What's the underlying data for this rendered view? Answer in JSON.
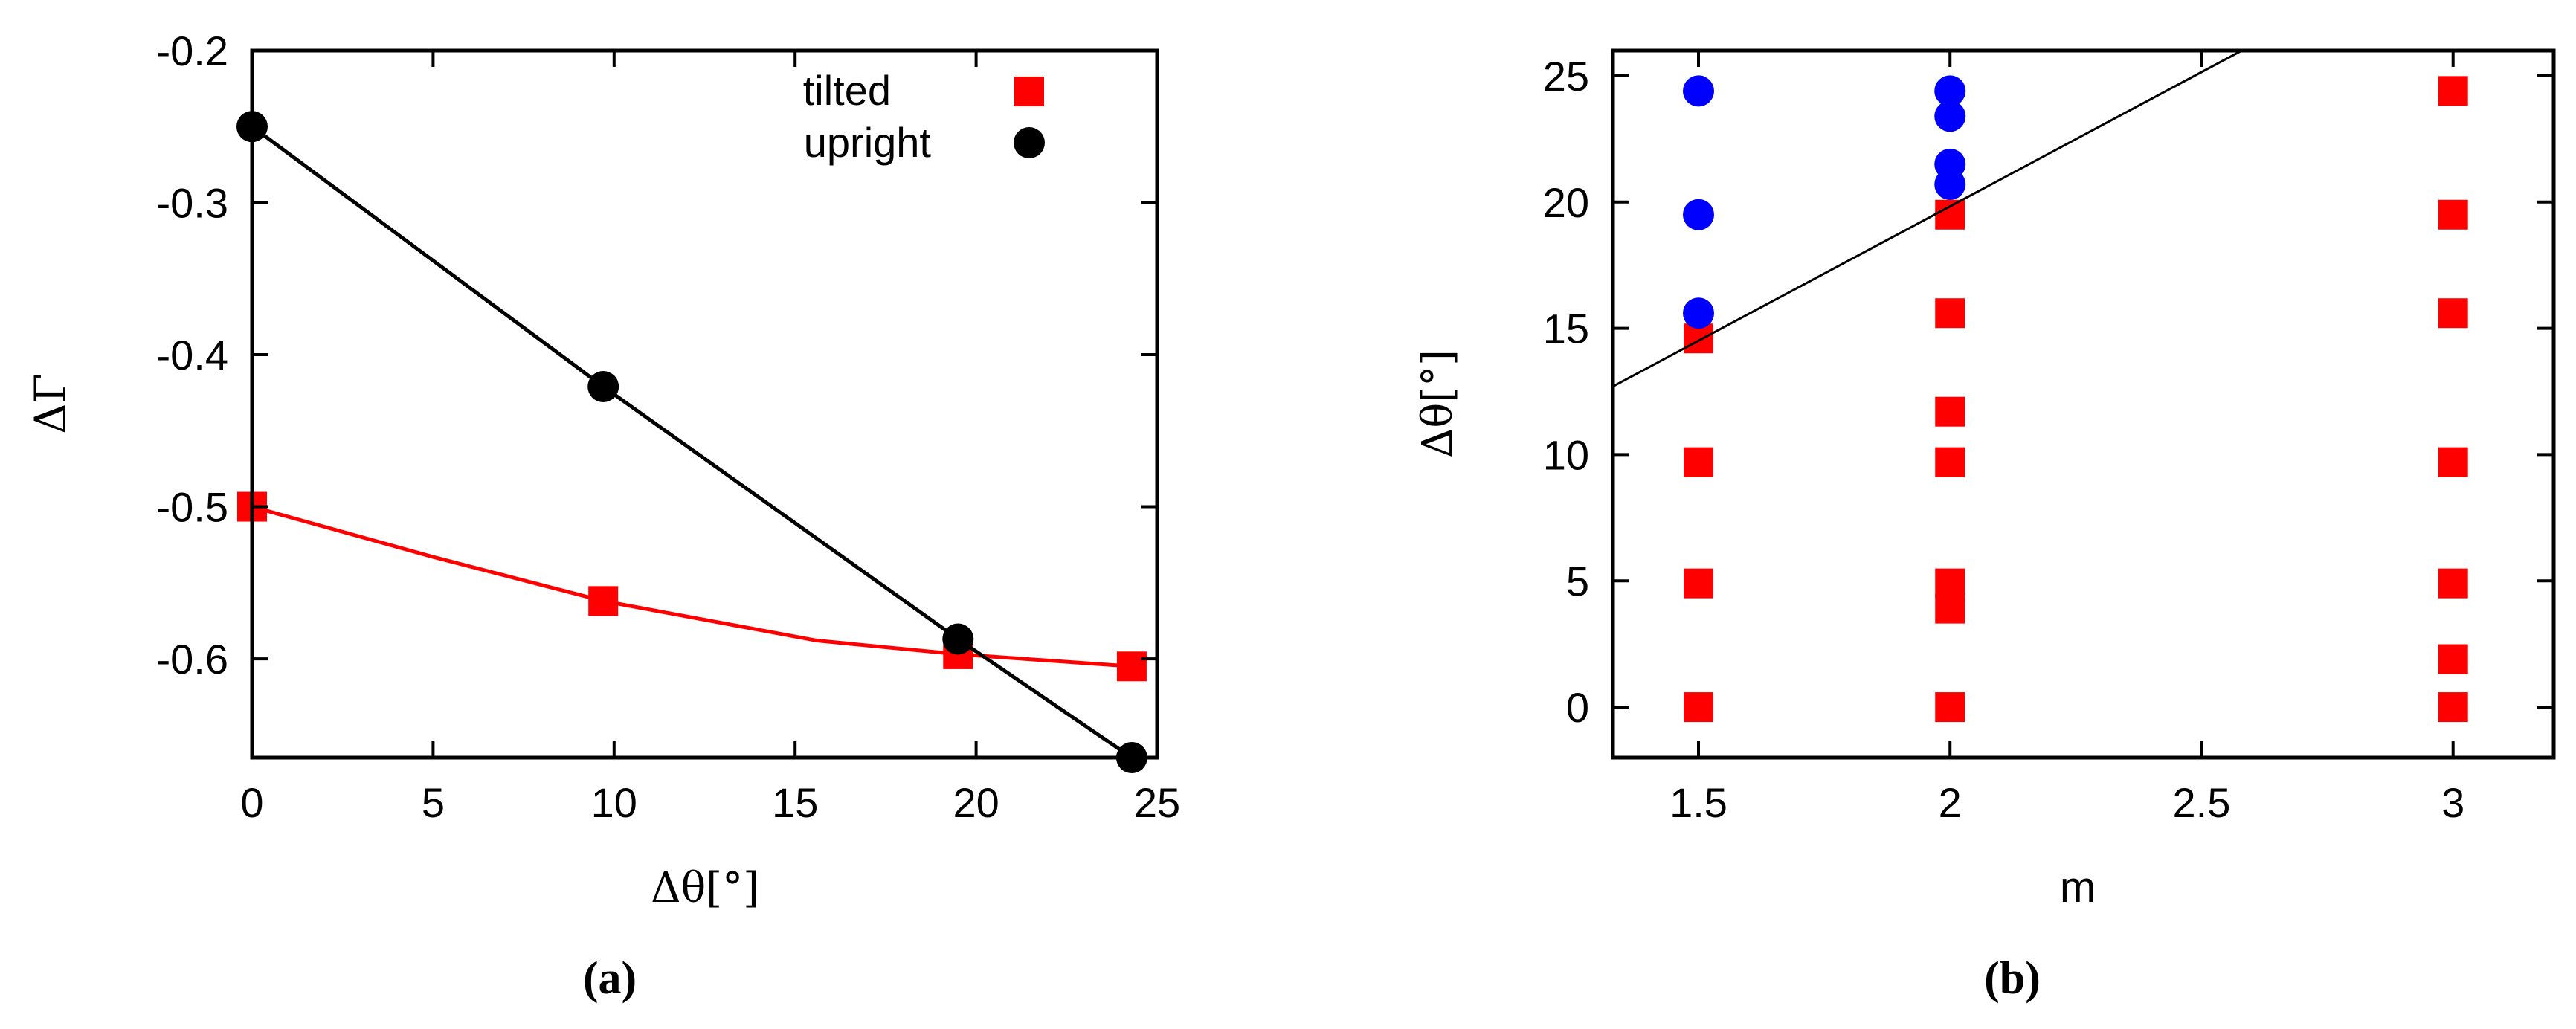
{
  "chart_data": [
    {
      "panel_label": "a",
      "type": "line",
      "xlabel": "Δθ[°]",
      "ylabel": "ΔΓ",
      "xlim": [
        0,
        25
      ],
      "ylim": [
        -0.665,
        -0.2
      ],
      "xticks": [
        0,
        5,
        10,
        15,
        20,
        25
      ],
      "xtick_labels": [
        "0",
        "5",
        "10",
        "15",
        "20",
        "25"
      ],
      "yticks": [
        -0.2,
        -0.3,
        -0.4,
        -0.5,
        -0.6
      ],
      "ytick_labels": [
        "-0.2",
        "-0.3",
        "-0.4",
        "-0.5",
        "-0.6"
      ],
      "grid": false,
      "legend_position": "top-right",
      "series": [
        {
          "name": "tilted",
          "marker": "square",
          "color": "#ff0000",
          "points": [
            [
              0,
              -0.5
            ],
            [
              9.7,
              -0.562
            ],
            [
              19.5,
              -0.597
            ],
            [
              24.3,
              -0.605
            ]
          ],
          "curve": [
            [
              0,
              -0.5
            ],
            [
              5,
              -0.533
            ],
            [
              9.7,
              -0.562
            ],
            [
              15.6,
              -0.588
            ],
            [
              19.5,
              -0.597
            ],
            [
              24.3,
              -0.605
            ]
          ]
        },
        {
          "name": "upright",
          "marker": "circle",
          "color": "#000000",
          "points": [
            [
              0,
              -0.25
            ],
            [
              9.7,
              -0.421
            ],
            [
              19.5,
              -0.587
            ],
            [
              24.3,
              -0.665
            ]
          ],
          "curve": [
            [
              0,
              -0.25
            ],
            [
              9.7,
              -0.421
            ],
            [
              19.5,
              -0.587
            ],
            [
              24.3,
              -0.665
            ]
          ]
        }
      ]
    },
    {
      "panel_label": "b",
      "type": "scatter",
      "xlabel": "m",
      "ylabel": "Δθ[°]",
      "xlim": [
        1.33,
        3.2
      ],
      "ylim": [
        -2,
        26
      ],
      "xticks": [
        1.5,
        2,
        2.5,
        3
      ],
      "xtick_labels": [
        "1.5",
        "2",
        "2.5",
        "3"
      ],
      "yticks": [
        0,
        5,
        10,
        15,
        20,
        25
      ],
      "ytick_labels": [
        "0",
        "5",
        "10",
        "15",
        "20",
        "25"
      ],
      "grid": false,
      "series": [
        {
          "marker": "square",
          "color": "#ff0000",
          "points": [
            [
              1.5,
              0
            ],
            [
              1.5,
              4.9
            ],
            [
              1.5,
              9.7
            ],
            [
              1.5,
              14.6
            ],
            [
              2,
              0
            ],
            [
              2,
              3.9
            ],
            [
              2,
              4.9
            ],
            [
              2,
              9.7
            ],
            [
              2,
              11.7
            ],
            [
              2,
              15.6
            ],
            [
              2,
              19.5
            ],
            [
              3,
              0
            ],
            [
              3,
              1.9
            ],
            [
              3,
              4.9
            ],
            [
              3,
              9.7
            ],
            [
              3,
              15.6
            ],
            [
              3,
              19.5
            ],
            [
              3,
              24.4
            ]
          ]
        },
        {
          "marker": "circle",
          "color": "#0000ff",
          "points": [
            [
              1.5,
              15.6
            ],
            [
              1.5,
              19.5
            ],
            [
              1.5,
              24.4
            ],
            [
              2,
              20.7
            ],
            [
              2,
              21.5
            ],
            [
              2,
              23.4
            ],
            [
              2,
              24.4
            ]
          ]
        },
        {
          "marker": "line",
          "color": "#000000",
          "line": [
            [
              1.33,
              12.7
            ],
            [
              2.58,
              26
            ]
          ]
        }
      ]
    }
  ]
}
